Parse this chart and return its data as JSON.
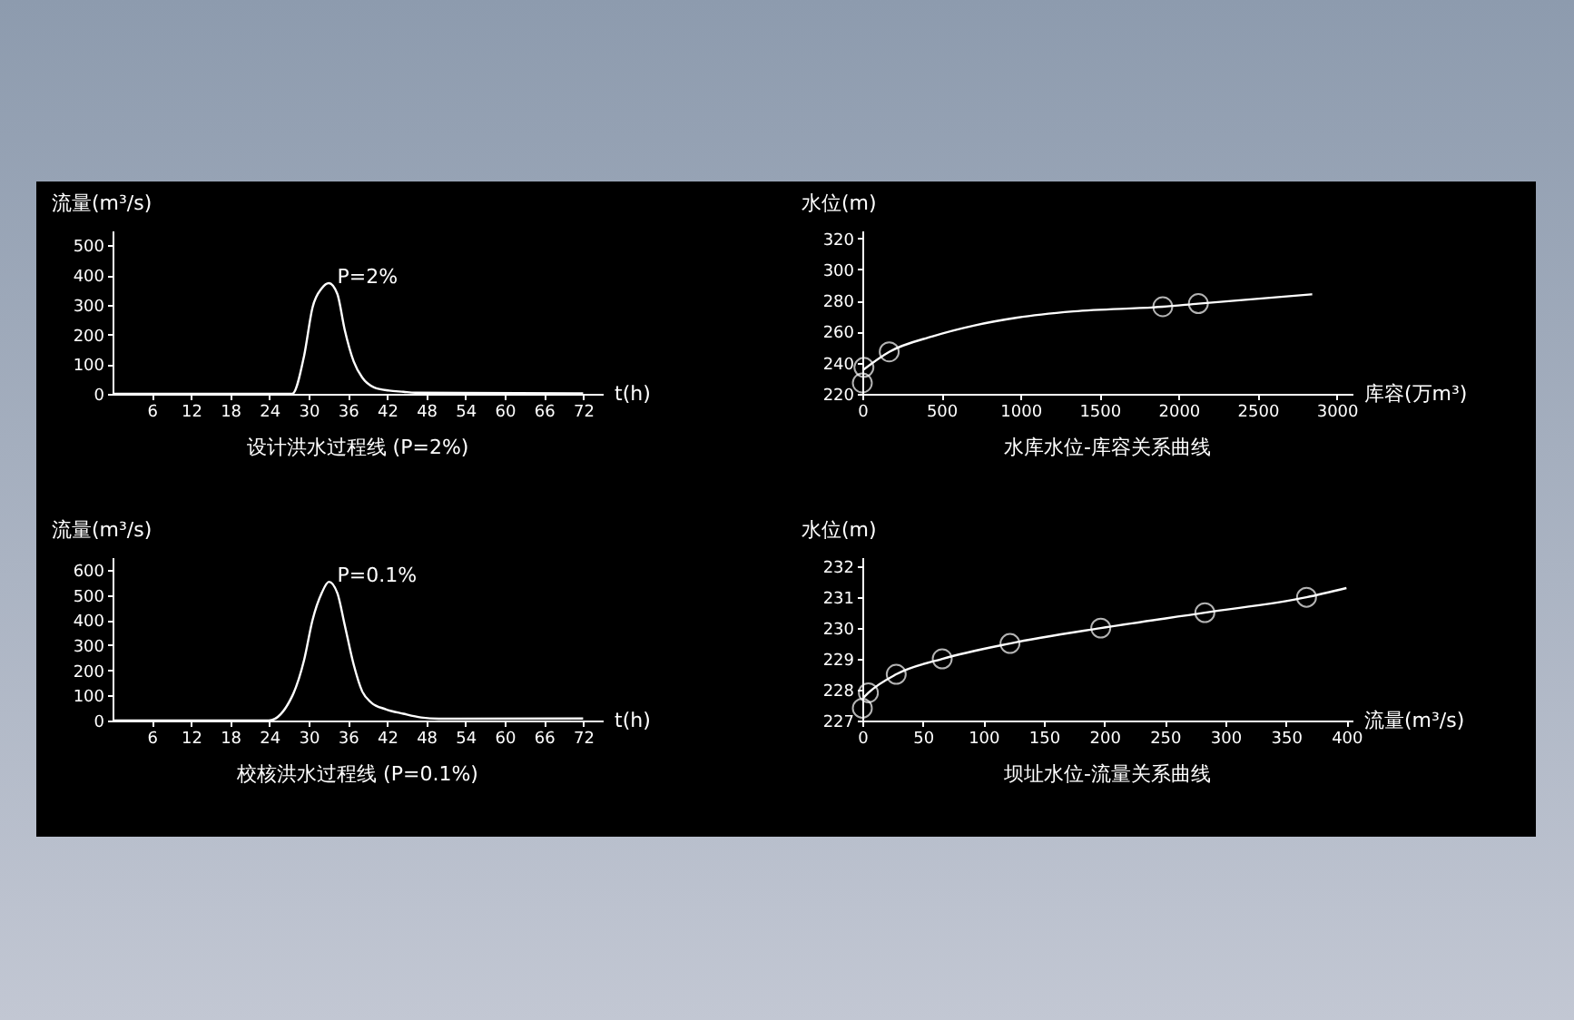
{
  "chart_data": [
    {
      "type": "line",
      "title": "设计洪水过程线 (P=2%)",
      "ylabel": "流量(m³/s)",
      "xlabel": "t(h)",
      "xlim": [
        0,
        75
      ],
      "ylim": [
        0,
        550
      ],
      "xticks": [
        6,
        12,
        18,
        24,
        30,
        36,
        42,
        48,
        54,
        60,
        66,
        72
      ],
      "yticks": [
        0,
        100,
        200,
        300,
        400,
        500
      ],
      "annotations": [
        {
          "text": "P=2%",
          "x": 33,
          "y": 373
        }
      ],
      "series": [
        {
          "color": "#ffffff",
          "marker": "none",
          "x": [
            0,
            27.5,
            29.3,
            30.6,
            32,
            33.1,
            34.4,
            35.5,
            36.9,
            38.2,
            40,
            42.3,
            44.5,
            46.3,
            72
          ],
          "values": [
            0,
            0,
            127,
            291,
            355,
            373,
            336,
            218,
            109,
            55,
            22,
            11,
            7,
            4,
            2
          ]
        }
      ]
    },
    {
      "type": "line",
      "title": "水库水位-库容关系曲线",
      "ylabel": "水位(m)",
      "xlabel": "库容(万m³)",
      "xlim": [
        0,
        3100
      ],
      "ylim": [
        220,
        325
      ],
      "xticks": [
        0,
        500,
        1000,
        1500,
        2000,
        2500,
        3000
      ],
      "yticks": [
        220,
        240,
        260,
        280,
        300,
        320
      ],
      "series": [
        {
          "color": "#ffffff",
          "marker": "none",
          "x": [
            0,
            170,
            445,
            710,
            980,
            1335,
            1900,
            2125,
            2845
          ],
          "values": [
            235,
            247,
            257,
            264,
            269,
            273,
            276,
            278,
            284
          ]
        },
        {
          "type": "scatter",
          "color": "#ffffff",
          "marker": "circle",
          "x": [
            0,
            10,
            170,
            1900,
            2125
          ],
          "values": [
            227,
            237,
            247,
            276,
            278
          ]
        }
      ]
    },
    {
      "type": "line",
      "title": "校核洪水过程线 (P=0.1%)",
      "ylabel": "流量(m³/s)",
      "xlabel": "t(h)",
      "xlim": [
        0,
        75
      ],
      "ylim": [
        0,
        650
      ],
      "xticks": [
        6,
        12,
        18,
        24,
        30,
        36,
        42,
        48,
        54,
        60,
        66,
        72
      ],
      "yticks": [
        0,
        100,
        200,
        300,
        400,
        500,
        600
      ],
      "annotations": [
        {
          "text": "P=0.1%",
          "x": 33,
          "y": 552
        }
      ],
      "series": [
        {
          "color": "#ffffff",
          "marker": "none",
          "x": [
            0,
            23.9,
            27.5,
            29.3,
            30.6,
            32,
            33.1,
            34.4,
            35.5,
            36.9,
            38.2,
            39.6,
            41.8,
            44.5,
            47.2,
            49.9,
            72
          ],
          "values": [
            0,
            0,
            98,
            240,
            400,
            507,
            552,
            507,
            383,
            222,
            116,
            71,
            45,
            27,
            12,
            7,
            8
          ]
        }
      ]
    },
    {
      "type": "line",
      "title": "坝址水位-流量关系曲线",
      "ylabel": "水位(m)",
      "xlabel": "流量(m³/s)",
      "xlim": [
        0,
        405
      ],
      "ylim": [
        227,
        232.3
      ],
      "xticks": [
        0,
        50,
        100,
        150,
        200,
        250,
        300,
        350,
        400
      ],
      "yticks": [
        227,
        228,
        229,
        230,
        231,
        232
      ],
      "series": [
        {
          "color": "#ffffff",
          "marker": "none",
          "x": [
            0,
            5,
            28,
            66,
            122,
            197,
            283,
            367,
            400
          ],
          "values": [
            227.7,
            227.9,
            228.5,
            229,
            229.5,
            230,
            230.5,
            231,
            231.3
          ]
        },
        {
          "type": "scatter",
          "color": "#ffffff",
          "marker": "circle",
          "x": [
            0,
            5,
            28,
            66,
            122,
            197,
            283,
            367
          ],
          "values": [
            227.4,
            227.9,
            228.5,
            229,
            229.5,
            230,
            230.5,
            231
          ]
        }
      ]
    }
  ]
}
